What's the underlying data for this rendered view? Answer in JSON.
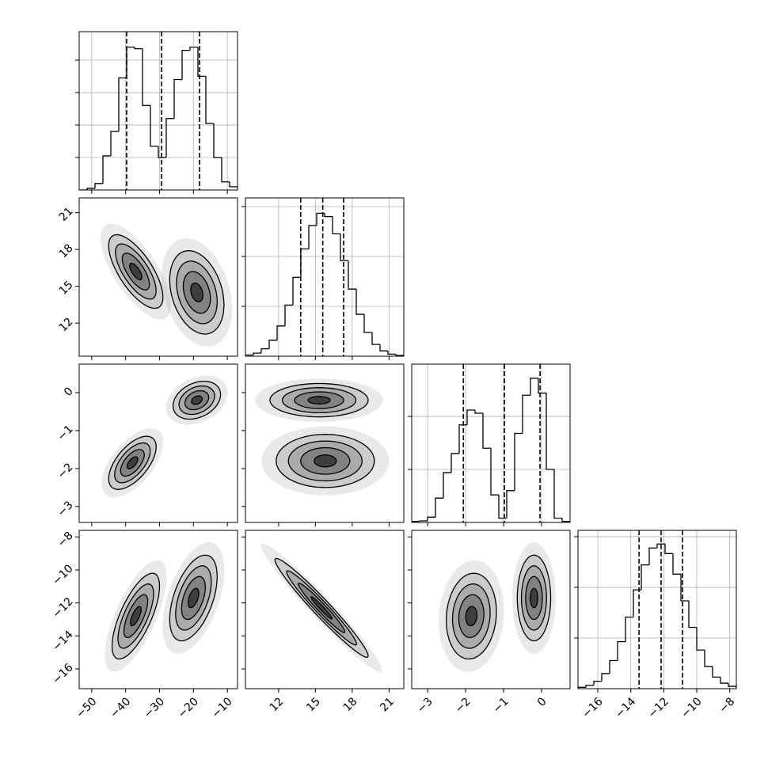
{
  "chart_data": {
    "type": "corner",
    "color": "#000000",
    "grid": true,
    "params": [
      {
        "lim": [
          -53.7,
          -7
        ],
        "ticks": [
          {
            "value": -50,
            "label": "−50"
          },
          {
            "value": -40,
            "label": "−40"
          },
          {
            "value": -30,
            "label": "−30"
          },
          {
            "value": -20,
            "label": "−20"
          },
          {
            "value": -10,
            "label": "−10"
          }
        ]
      },
      {
        "lim": [
          9.3,
          22.2
        ],
        "ticks": [
          12,
          15,
          18,
          21
        ]
      },
      {
        "lim": [
          -3.42,
          0.75
        ],
        "ticks": [
          {
            "value": -3,
            "label": "−3"
          },
          {
            "value": -2,
            "label": "−2"
          },
          {
            "value": -1,
            "label": "−1"
          },
          0
        ]
      },
      {
        "lim": [
          -17.2,
          -7.6
        ],
        "ticks": [
          {
            "value": -16,
            "label": "−16"
          },
          {
            "value": -14,
            "label": "−14"
          },
          {
            "value": -12,
            "label": "−12"
          },
          {
            "value": -10,
            "label": "−10"
          },
          {
            "value": -8,
            "label": "−8"
          }
        ]
      }
    ],
    "histograms": [
      {
        "bins": [
          -53.7,
          -51.365,
          -49.03,
          -46.695,
          -44.36,
          -42.025,
          -39.69,
          -37.355,
          -35.02,
          -32.685,
          -30.35,
          -28.015,
          -25.68,
          -23.345,
          -21.01,
          -18.675,
          -16.34,
          -14.005,
          -11.67,
          -9.335,
          -7
        ],
        "counts": [
          0,
          10,
          40,
          210,
          360,
          690,
          880,
          870,
          520,
          270,
          200,
          440,
          680,
          860,
          880,
          700,
          410,
          200,
          50,
          20
        ],
        "ylim": [
          0,
          975
        ],
        "yticks": [
          200,
          400,
          600,
          800
        ],
        "quantiles": [
          -39.7,
          -29.4,
          -18.2
        ]
      },
      {
        "bins": [
          9.3,
          9.945,
          10.59,
          11.235,
          11.88,
          12.525,
          13.17,
          13.815,
          14.46,
          15.105,
          15.75,
          16.395,
          17.04,
          17.685,
          18.33,
          18.975,
          19.62,
          20.265,
          20.91,
          21.555,
          22.2
        ],
        "counts": [
          12,
          31,
          75,
          160,
          303,
          513,
          790,
          1075,
          1310,
          1433,
          1400,
          1227,
          958,
          673,
          420,
          238,
          118,
          53,
          21,
          8
        ],
        "ylim": [
          0,
          1587
        ],
        "yticks": [
          500,
          1000,
          1500
        ],
        "quantiles": [
          13.8,
          15.6,
          17.3
        ]
      },
      {
        "bins": [
          -3.42,
          -3.2115,
          -3.003,
          -2.7945,
          -2.586,
          -2.3775,
          -2.169,
          -1.9605,
          -1.752,
          -1.5435,
          -1.335,
          -1.1265,
          -0.918,
          -0.7095,
          -0.501,
          -0.2925,
          -0.084,
          0.1245,
          0.333,
          0.5415,
          0.75
        ],
        "counts": [
          10,
          15,
          50,
          230,
          470,
          650,
          920,
          1060,
          1030,
          700,
          260,
          40,
          300,
          840,
          1200,
          1360,
          1220,
          500,
          40,
          10
        ],
        "ylim": [
          0,
          1493
        ],
        "yticks": [
          500,
          1000
        ],
        "quantiles": [
          -2.06,
          -0.98,
          -0.04
        ]
      },
      {
        "bins": [
          -17.2,
          -16.72,
          -16.24,
          -15.76,
          -15.28,
          -14.8,
          -14.32,
          -13.84,
          -13.36,
          -12.88,
          -12.4,
          -11.92,
          -11.44,
          -10.96,
          -10.48,
          -10,
          -9.52,
          -9.04,
          -8.56,
          -8.08,
          -7.6
        ],
        "counts": [
          13,
          33,
          73,
          149,
          277,
          464,
          706,
          975,
          1221,
          1388,
          1427,
          1333,
          1130,
          867,
          605,
          382,
          219,
          114,
          54,
          23
        ],
        "ylim": [
          0,
          1562
        ],
        "yticks": [
          500,
          1000,
          1500
        ],
        "quantiles": [
          -13.5,
          -12.16,
          -10.86
        ]
      }
    ],
    "panels": [
      {
        "row": 1,
        "col": 0,
        "blobs": [
          {
            "cx": -37,
            "cy": 16.2,
            "sx": 4,
            "sy": 1.5,
            "rho": -0.7
          },
          {
            "cx": -19,
            "cy": 14.5,
            "sx": 4,
            "sy": 1.7,
            "rho": -0.3
          }
        ]
      },
      {
        "row": 2,
        "col": 0,
        "blobs": [
          {
            "cx": -38,
            "cy": -1.85,
            "sx": 3.5,
            "sy": 0.35,
            "rho": 0.6
          },
          {
            "cx": -19,
            "cy": -0.2,
            "sx": 3.5,
            "sy": 0.25,
            "rho": 0.3
          }
        ]
      },
      {
        "row": 2,
        "col": 1,
        "blobs": [
          {
            "cx": 15.3,
            "cy": -0.2,
            "sx": 2,
            "sy": 0.22,
            "rho": 0
          },
          {
            "cx": 15.8,
            "cy": -1.8,
            "sx": 2,
            "sy": 0.35,
            "rho": 0
          }
        ]
      },
      {
        "row": 3,
        "col": 0,
        "blobs": [
          {
            "cx": -37,
            "cy": -12.8,
            "sx": 3.5,
            "sy": 1.3,
            "rho": 0.7
          },
          {
            "cx": -20,
            "cy": -11.7,
            "sx": 3.5,
            "sy": 1.3,
            "rho": 0.5
          }
        ]
      },
      {
        "row": 3,
        "col": 1,
        "blobs": [
          {
            "cx": 15.5,
            "cy": -12.3,
            "sx": 1.9,
            "sy": 1.5,
            "rho": -0.97
          }
        ]
      },
      {
        "row": 3,
        "col": 2,
        "blobs": [
          {
            "cx": -1.85,
            "cy": -12.8,
            "sx": 0.33,
            "sy": 1.3,
            "rho": 0.1
          },
          {
            "cx": -0.2,
            "cy": -11.7,
            "sx": 0.22,
            "sy": 1.3,
            "rho": 0
          }
        ]
      }
    ]
  }
}
